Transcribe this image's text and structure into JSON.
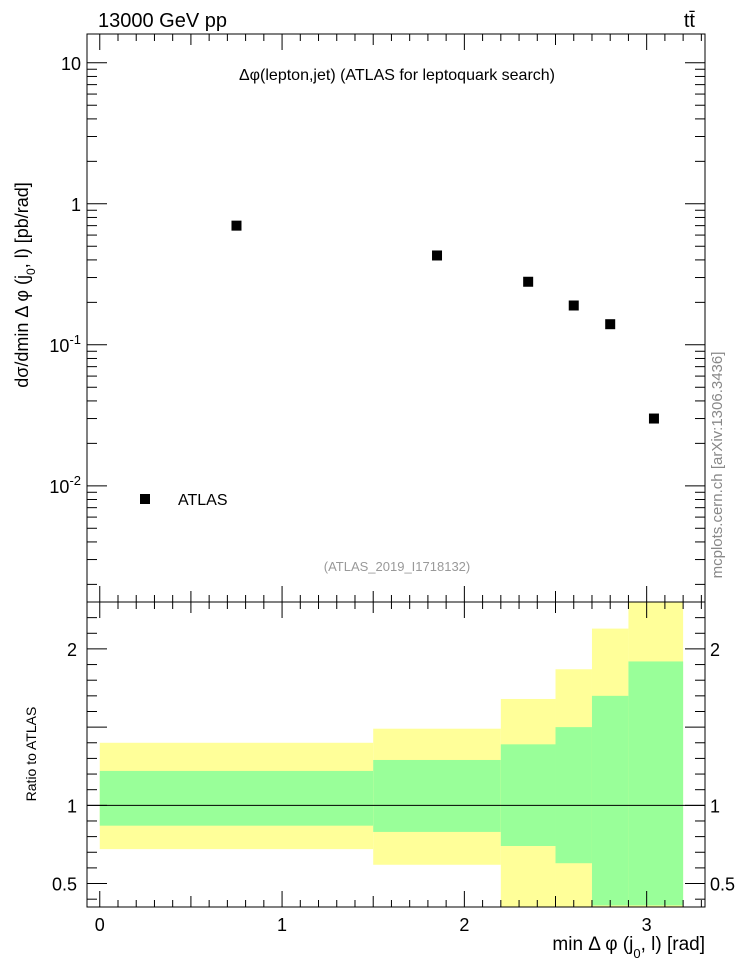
{
  "header": {
    "energy_label": "13000 GeV pp",
    "process_label": "tt̄"
  },
  "watermark": "mcplots.cern.ch [arXiv:1306.3436]",
  "chart_data": [
    {
      "type": "scatter",
      "title": "Δφ(lepton,jet) (ATLAS for leptoquark search)",
      "analysis_id": "(ATLAS_2019_I1718132)",
      "ylabel": "dσ/dmin Δ φ (j0, l) [pb/rad]",
      "yscale": "log",
      "ylim": [
        0.0015,
        16
      ],
      "xlim": [
        -0.07,
        3.32
      ],
      "y_tick_labels": [
        "10",
        "1",
        "10⁻¹",
        "10⁻²"
      ],
      "legend": {
        "position": "bottom-left",
        "entries": [
          "ATLAS"
        ]
      },
      "series": [
        {
          "name": "ATLAS",
          "marker": "square",
          "color": "#000000",
          "x": [
            0.75,
            1.85,
            2.35,
            2.6,
            2.8,
            3.04
          ],
          "y": [
            0.7,
            0.43,
            0.28,
            0.19,
            0.14,
            0.03
          ]
        }
      ]
    },
    {
      "type": "area",
      "ylabel": "Ratio to ATLAS",
      "xlabel": "min Δ φ (j0, l) [rad]",
      "ylim": [
        0.35,
        2.3
      ],
      "xlim": [
        -0.07,
        3.32
      ],
      "x_ticks": [
        0,
        1,
        2,
        3
      ],
      "y_ticks": [
        0.5,
        1,
        2
      ],
      "reference_line": 1,
      "bins": [
        {
          "xlo": 0.0,
          "xhi": 1.5,
          "yellow": [
            0.72,
            1.4
          ],
          "green": [
            0.87,
            1.22
          ]
        },
        {
          "xlo": 1.5,
          "xhi": 2.2,
          "yellow": [
            0.62,
            1.49
          ],
          "green": [
            0.83,
            1.29
          ]
        },
        {
          "xlo": 2.2,
          "xhi": 2.5,
          "yellow": [
            0.35,
            1.68
          ],
          "green": [
            0.74,
            1.39
          ]
        },
        {
          "xlo": 2.5,
          "xhi": 2.7,
          "yellow": [
            0.35,
            1.87
          ],
          "green": [
            0.63,
            1.5
          ]
        },
        {
          "xlo": 2.7,
          "xhi": 2.9,
          "yellow": [
            0.35,
            2.13
          ],
          "green": [
            0.36,
            1.7
          ]
        },
        {
          "xlo": 2.9,
          "xhi": 3.2,
          "yellow": [
            0.35,
            2.3
          ],
          "green": [
            0.36,
            1.92
          ]
        }
      ],
      "colors": {
        "yellow": "#ffff99",
        "green": "#99ff99"
      }
    }
  ]
}
